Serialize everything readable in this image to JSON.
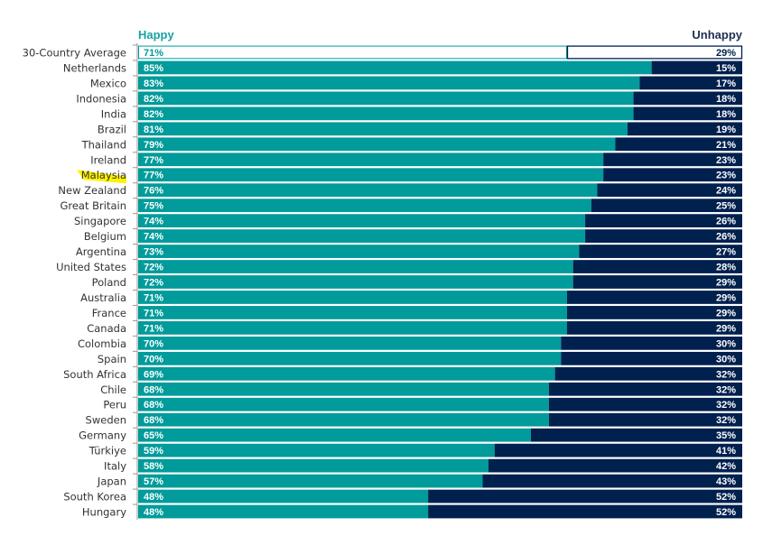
{
  "chart_data": {
    "type": "bar",
    "orientation": "horizontal",
    "stacked": true,
    "title": "",
    "xlabel": "",
    "ylabel": "",
    "xlim": [
      0,
      100
    ],
    "grid": false,
    "legend_headers": {
      "left": "Happy",
      "right": "Unhappy"
    },
    "colors": {
      "happy": "#009B9A",
      "unhappy": "#00204E",
      "highlight": "#FFF200",
      "label_text": "#333333",
      "axis": "#999999"
    },
    "highlighted_category": "Malaysia",
    "categories": [
      "30-Country Average",
      "Netherlands",
      "Mexico",
      "Indonesia",
      "India",
      "Brazil",
      "Thailand",
      "Ireland",
      "Malaysia",
      "New Zealand",
      "Great Britain",
      "Singapore",
      "Belgium",
      "Argentina",
      "United States",
      "Poland",
      "Australia",
      "France",
      "Canada",
      "Colombia",
      "Spain",
      "South Africa",
      "Chile",
      "Peru",
      "Sweden",
      "Germany",
      "Türkiye",
      "Italy",
      "Japan",
      "South Korea",
      "Hungary"
    ],
    "series": [
      {
        "name": "Happy",
        "values": [
          71,
          85,
          83,
          82,
          82,
          81,
          79,
          77,
          77,
          76,
          75,
          74,
          74,
          73,
          72,
          72,
          71,
          71,
          71,
          70,
          70,
          69,
          68,
          68,
          68,
          65,
          59,
          58,
          57,
          48,
          48
        ]
      },
      {
        "name": "Unhappy",
        "values": [
          29,
          15,
          17,
          18,
          18,
          19,
          21,
          23,
          23,
          24,
          25,
          26,
          26,
          27,
          28,
          29,
          29,
          29,
          29,
          30,
          30,
          32,
          32,
          32,
          32,
          35,
          41,
          42,
          43,
          52,
          52
        ]
      }
    ],
    "outlined_category": "30-Country Average"
  }
}
